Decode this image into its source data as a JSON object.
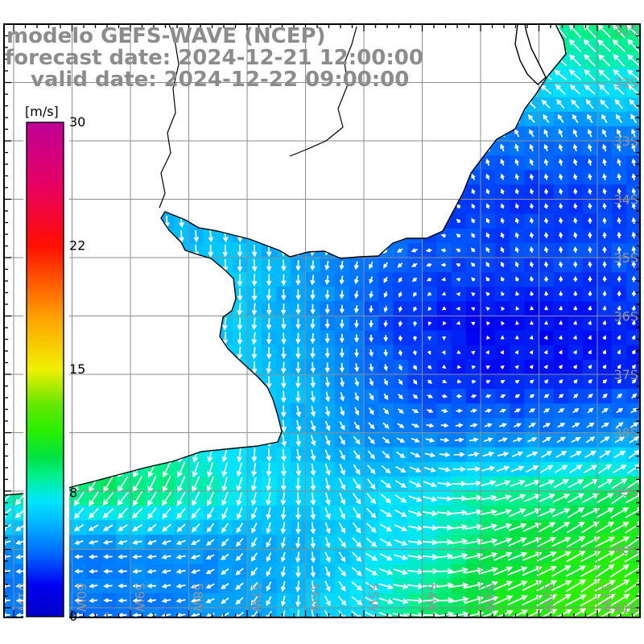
{
  "title": {
    "line1": "modelo GEFS-WAVE (NCEP)",
    "line2": "forecast date: 2024-12-21 12:00:00",
    "line3": "valid date: 2024-12-22 09:00:00",
    "color": "#8c8c8c"
  },
  "colorbar": {
    "unit": "[m/s]",
    "vmin": 0,
    "vmax": 30,
    "tick_values": [
      30,
      22,
      15,
      8,
      0
    ],
    "tick_labels": [
      "30",
      "22",
      "15",
      "8",
      "0"
    ],
    "color_stops": [
      [
        0,
        "#0000C8"
      ],
      [
        2,
        "#0000F0"
      ],
      [
        4,
        "#0064FF"
      ],
      [
        6,
        "#00B4FF"
      ],
      [
        7.5,
        "#00E6FF"
      ],
      [
        9,
        "#00F08C"
      ],
      [
        10,
        "#00E146"
      ],
      [
        11.5,
        "#28F000"
      ],
      [
        13,
        "#64E600"
      ],
      [
        15,
        "#F0F000"
      ],
      [
        18,
        "#FFA000"
      ],
      [
        22,
        "#FF0F00"
      ],
      [
        26,
        "#E60064"
      ],
      [
        30,
        "#BE0096"
      ]
    ]
  },
  "axes": {
    "lon_labels": [
      "61W",
      "60W",
      "59W",
      "58W",
      "57W",
      "56W",
      "55W",
      "54W",
      "53W",
      "52W",
      "51W"
    ],
    "lat_labels": [
      "31S",
      "32S",
      "33S",
      "34S",
      "35S",
      "36S",
      "37S",
      "38S",
      "39S",
      "40S",
      "41S"
    ],
    "label_color": "#969696",
    "grid_color": "#8e8e8e",
    "frame_color": "#000000"
  },
  "field": {
    "units": "m/s",
    "lon_start": -62,
    "lon_step": 1,
    "lon_count": 13,
    "lat_start": -31,
    "lat_step": -1,
    "lat_count": 12,
    "speed": [
      [
        7,
        7,
        7,
        7,
        7,
        7,
        7,
        7.5,
        8,
        8.5,
        9,
        9.5,
        9.5
      ],
      [
        6.5,
        6.5,
        6.5,
        6.5,
        6.5,
        6.5,
        6.8,
        7,
        7.2,
        7.4,
        7.5,
        7.6,
        8
      ],
      [
        5,
        5,
        5,
        5,
        5,
        5,
        5.5,
        5.5,
        5,
        4.5,
        4.2,
        4.2,
        4.5
      ],
      [
        6,
        6,
        6,
        6,
        5.8,
        5.5,
        5,
        4.5,
        3.5,
        3,
        3,
        3.2,
        3.5
      ],
      [
        7,
        7,
        7,
        6.5,
        6.5,
        6.5,
        5.5,
        4.5,
        3.8,
        3.5,
        3.5,
        3.5,
        4
      ],
      [
        8,
        8,
        8,
        7.5,
        7,
        6.5,
        5.5,
        4,
        2.8,
        2.2,
        2.2,
        2.5,
        3
      ],
      [
        7,
        7,
        7,
        7,
        6.8,
        6.5,
        6,
        4.5,
        3.2,
        2.4,
        2.4,
        2.6,
        3
      ],
      [
        9,
        9,
        9,
        8.5,
        7.5,
        7,
        6,
        5,
        4.5,
        4.5,
        4.7,
        5,
        5.5
      ],
      [
        8.5,
        9,
        9.5,
        9.5,
        9,
        7.5,
        7,
        7,
        7.5,
        8.5,
        9,
        9.5,
        10
      ],
      [
        5.5,
        5,
        4.5,
        5,
        5,
        5.5,
        6,
        7,
        8,
        9.5,
        10.5,
        11,
        11.5
      ],
      [
        4.5,
        4.5,
        4.5,
        4.5,
        5,
        5.5,
        6.5,
        7.5,
        9,
        10.5,
        11.5,
        12,
        12
      ],
      [
        4.5,
        4.5,
        4.5,
        4.5,
        5,
        5.5,
        6.5,
        7.5,
        9,
        10.5,
        11.5,
        12,
        12
      ]
    ],
    "dir": [
      [
        150,
        150,
        150,
        150,
        150,
        150,
        145,
        140,
        140,
        138,
        135,
        133,
        130
      ],
      [
        170,
        170,
        170,
        170,
        165,
        160,
        155,
        150,
        148,
        145,
        142,
        140,
        138
      ],
      [
        200,
        200,
        200,
        200,
        195,
        190,
        180,
        160,
        130,
        115,
        110,
        108,
        105
      ],
      [
        270,
        270,
        272,
        275,
        278,
        272,
        255,
        220,
        150,
        110,
        100,
        100,
        100
      ],
      [
        268,
        268,
        270,
        272,
        275,
        272,
        265,
        250,
        200,
        120,
        100,
        95,
        95
      ],
      [
        250,
        252,
        255,
        260,
        265,
        268,
        270,
        268,
        250,
        150,
        90,
        80,
        80
      ],
      [
        240,
        242,
        245,
        250,
        258,
        265,
        270,
        280,
        310,
        20,
        50,
        50,
        50
      ],
      [
        235,
        237,
        240,
        245,
        255,
        268,
        285,
        310,
        345,
        15,
        28,
        32,
        35
      ],
      [
        230,
        232,
        235,
        238,
        245,
        255,
        275,
        305,
        340,
        10,
        25,
        30,
        33
      ],
      [
        190,
        188,
        185,
        183,
        195,
        230,
        270,
        320,
        355,
        15,
        25,
        30,
        32
      ],
      [
        185,
        185,
        183,
        182,
        190,
        225,
        270,
        330,
        0,
        18,
        28,
        32,
        34
      ],
      [
        185,
        185,
        183,
        182,
        190,
        225,
        270,
        330,
        0,
        18,
        28,
        32,
        34
      ]
    ]
  },
  "style": {
    "arrow_color": "#ffffff",
    "land_color": "#ffffff",
    "coast_color": "#000000"
  }
}
